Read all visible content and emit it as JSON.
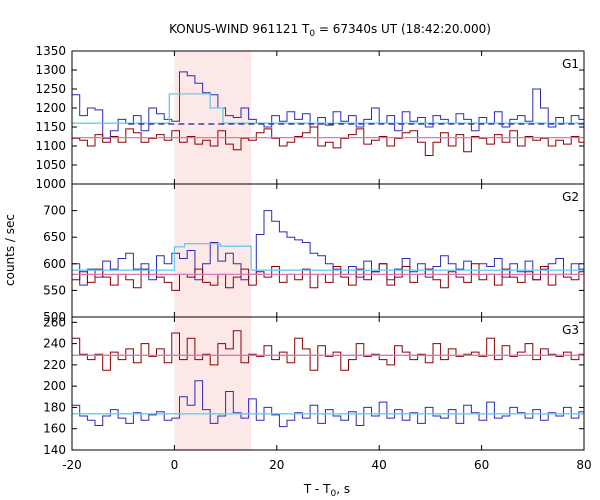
{
  "chart_data": {
    "type": "line",
    "title": "KONUS-WIND 961121 T0 = 67340s UT (18:42:20.000)",
    "title_parts": [
      "KONUS-WIND 961121 T",
      "0",
      " = 67340s UT (18:42:20.000)"
    ],
    "xlabel_parts": [
      "T - T",
      "0",
      ", s"
    ],
    "ylabel": "counts / sec",
    "xlim": [
      -20,
      80
    ],
    "xticks": [
      "-20",
      "0",
      "20",
      "40",
      "60",
      "80"
    ],
    "xtick_values": [
      -20,
      0,
      20,
      40,
      60,
      80
    ],
    "highlight_interval": [
      0,
      15
    ],
    "bin_width": 1.5,
    "colors": {
      "blue": "#2b2bb8",
      "red": "#8b0000",
      "model_cyan": "#66ccee",
      "model_pink": "#dd77bb",
      "dashed": "#1a1a9e",
      "highlight": "#fde8e8"
    },
    "panels": [
      {
        "label": "G1",
        "ylim": [
          1000,
          1350
        ],
        "yticks": [
          1000,
          1050,
          1100,
          1150,
          1200,
          1250,
          1300,
          1350
        ],
        "series": [
          {
            "color": "blue",
            "x0": -20,
            "values": [
              1235,
              1180,
              1200,
              1195,
              1120,
              1140,
              1170,
              1160,
              1180,
              1140,
              1200,
              1185,
              1170,
              1165,
              1295,
              1285,
              1265,
              1240,
              1235,
              1200,
              1180,
              1175,
              1200,
              1170,
              1160,
              1150,
              1180,
              1165,
              1190,
              1170,
              1185,
              1150,
              1175,
              1155,
              1190,
              1165,
              1180,
              1150,
              1170,
              1200,
              1160,
              1180,
              1140,
              1190,
              1165,
              1175,
              1150,
              1180,
              1170,
              1160,
              1185,
              1170,
              1140,
              1175,
              1160,
              1190,
              1150,
              1170,
              1180,
              1165,
              1250,
              1200,
              1150,
              1175,
              1160,
              1180,
              1170
            ]
          },
          {
            "color": "red",
            "x0": -20,
            "values": [
              1120,
              1115,
              1100,
              1130,
              1110,
              1125,
              1110,
              1145,
              1135,
              1110,
              1120,
              1130,
              1115,
              1140,
              1110,
              1125,
              1105,
              1115,
              1100,
              1140,
              1105,
              1090,
              1120,
              1115,
              1135,
              1145,
              1120,
              1100,
              1110,
              1125,
              1135,
              1150,
              1100,
              1110,
              1095,
              1120,
              1130,
              1145,
              1105,
              1115,
              1125,
              1100,
              1120,
              1135,
              1140,
              1110,
              1075,
              1110,
              1135,
              1100,
              1130,
              1085,
              1125,
              1120,
              1105,
              1130,
              1110,
              1140,
              1100,
              1125,
              1115,
              1120,
              1100,
              1115,
              1105,
              1125,
              1110
            ]
          }
        ],
        "models": [
          {
            "color": "model_cyan",
            "segments": [
              [
                -20,
                -1,
                1160
              ],
              [
                -1,
                7,
                1237
              ],
              [
                7,
                9.5,
                1200
              ],
              [
                9.5,
                80,
                1160
              ]
            ]
          },
          {
            "color": "model_pink",
            "segments": [
              [
                -20,
                80,
                1122
              ]
            ]
          },
          {
            "color": "dashed",
            "dashed": true,
            "segments": [
              [
                -9,
                80,
                1158
              ]
            ]
          }
        ]
      },
      {
        "label": "G2",
        "ylim": [
          500,
          750
        ],
        "yticks": [
          500,
          550,
          600,
          650,
          700
        ],
        "series": [
          {
            "color": "blue",
            "x0": -20,
            "values": [
              600,
              560,
              590,
              575,
              605,
              590,
              610,
              620,
              590,
              600,
              570,
              615,
              600,
              620,
              610,
              625,
              570,
              600,
              640,
              605,
              620,
              600,
              570,
              580,
              655,
              700,
              680,
              660,
              650,
              645,
              640,
              620,
              615,
              600,
              590,
              580,
              595,
              575,
              605,
              585,
              600,
              570,
              590,
              610,
              585,
              600,
              575,
              595,
              615,
              600,
              590,
              605,
              580,
              600,
              595,
              610,
              575,
              600,
              585,
              605,
              570,
              590,
              600,
              610,
              580,
              600,
              590
            ]
          },
          {
            "color": "red",
            "x0": -20,
            "values": [
              570,
              585,
              565,
              590,
              575,
              560,
              580,
              570,
              555,
              590,
              580,
              575,
              565,
              550,
              580,
              575,
              590,
              565,
              560,
              580,
              555,
              575,
              590,
              560,
              585,
              575,
              595,
              565,
              580,
              570,
              590,
              555,
              580,
              565,
              595,
              575,
              560,
              590,
              570,
              585,
              600,
              560,
              575,
              595,
              565,
              580,
              590,
              570,
              555,
              585,
              575,
              565,
              600,
              570,
              580,
              560,
              590,
              575,
              565,
              585,
              570,
              595,
              560,
              580,
              575,
              570,
              585
            ]
          }
        ],
        "models": [
          {
            "color": "model_cyan",
            "segments": [
              [
                -20,
                0,
                588
              ],
              [
                0,
                2,
                632
              ],
              [
                2,
                9,
                638
              ],
              [
                9,
                15,
                633
              ],
              [
                15,
                80,
                588
              ]
            ]
          },
          {
            "color": "model_pink",
            "segments": [
              [
                -20,
                80,
                580
              ]
            ]
          }
        ]
      },
      {
        "label": "G3",
        "ylim": [
          140,
          265
        ],
        "yticks": [
          140,
          160,
          180,
          200,
          220,
          240,
          260
        ],
        "series": [
          {
            "color": "blue",
            "x0": -20,
            "values": [
              182,
              172,
              168,
              163,
              172,
              178,
              170,
              165,
              175,
              168,
              173,
              176,
              168,
              170,
              190,
              182,
              205,
              178,
              165,
              172,
              195,
              175,
              170,
              188,
              168,
              180,
              173,
              162,
              168,
              175,
              170,
              182,
              165,
              178,
              172,
              168,
              176,
              163,
              180,
              172,
              185,
              170,
              178,
              168,
              175,
              165,
              180,
              172,
              170,
              178,
              165,
              182,
              175,
              168,
              185,
              170,
              172,
              180,
              175,
              170,
              178,
              168,
              175,
              172,
              180,
              170,
              176
            ]
          },
          {
            "color": "red",
            "x0": -20,
            "values": [
              245,
              230,
              225,
              230,
              215,
              232,
              225,
              235,
              222,
              240,
              228,
              235,
              222,
              250,
              225,
              245,
              225,
              230,
              220,
              240,
              235,
              252,
              222,
              230,
              228,
              238,
              225,
              232,
              222,
              245,
              235,
              215,
              238,
              228,
              232,
              215,
              225,
              240,
              228,
              230,
              225,
              220,
              238,
              232,
              225,
              230,
              222,
              240,
              225,
              235,
              228,
              230,
              232,
              228,
              245,
              225,
              238,
              228,
              232,
              240,
              225,
              235,
              230,
              228,
              232,
              225,
              230
            ]
          }
        ],
        "models": [
          {
            "color": "model_cyan",
            "segments": [
              [
                -20,
                80,
                174
              ]
            ]
          },
          {
            "color": "model_pink",
            "segments": [
              [
                -20,
                80,
                229
              ]
            ]
          }
        ]
      }
    ]
  }
}
